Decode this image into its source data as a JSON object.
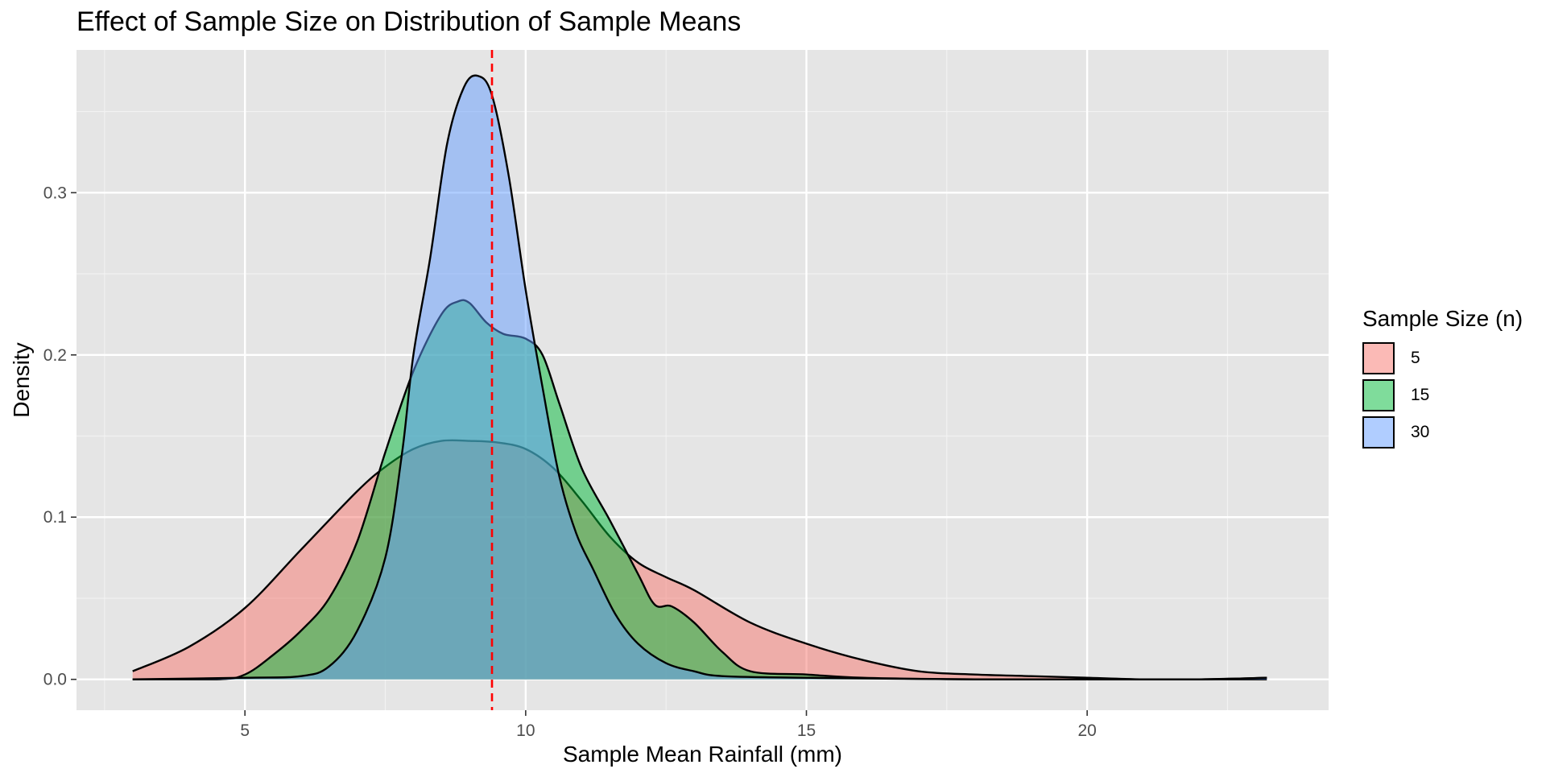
{
  "chart_data": {
    "type": "area",
    "title": "Effect of Sample Size on Distribution of Sample Means",
    "xlabel": "Sample Mean Rainfall (mm)",
    "ylabel": "Density",
    "xlim": [
      2.0,
      24.3
    ],
    "ylim": [
      -0.019,
      0.388
    ],
    "x_ticks": [
      5,
      10,
      15,
      20
    ],
    "x_tick_labels": [
      "5",
      "10",
      "15",
      "20"
    ],
    "y_ticks": [
      0.0,
      0.1,
      0.2,
      0.3
    ],
    "y_tick_labels": [
      "0.0",
      "0.1",
      "0.2",
      "0.3"
    ],
    "grid": true,
    "legend_title": "Sample Size (n)",
    "legend_position": "right",
    "reference_line": {
      "x": 9.4,
      "color": "#ff0000",
      "style": "dashed"
    },
    "series": [
      {
        "name": "5",
        "color": "#F8766D",
        "x": [
          3.0,
          4.0,
          5.0,
          6.0,
          7.0,
          7.5,
          8.0,
          8.5,
          9.0,
          9.5,
          10.0,
          10.5,
          11.0,
          11.5,
          12.0,
          12.5,
          13.0,
          14.0,
          15.0,
          16.0,
          17.0,
          18.0,
          19.0,
          20.0,
          21.0,
          22.0,
          23.2
        ],
        "y": [
          0.005,
          0.02,
          0.044,
          0.08,
          0.116,
          0.131,
          0.142,
          0.147,
          0.147,
          0.146,
          0.142,
          0.13,
          0.11,
          0.088,
          0.072,
          0.063,
          0.055,
          0.035,
          0.022,
          0.012,
          0.005,
          0.003,
          0.002,
          0.001,
          0.0,
          0.0,
          0.001
        ]
      },
      {
        "name": "15",
        "color": "#00BA38",
        "x": [
          3.0,
          4.5,
          5.0,
          5.5,
          6.0,
          6.5,
          7.0,
          7.5,
          8.0,
          8.5,
          8.8,
          9.0,
          9.3,
          9.6,
          10.0,
          10.3,
          10.6,
          11.0,
          11.5,
          12.0,
          12.3,
          12.6,
          13.0,
          13.5,
          14.0,
          15.0,
          16.0,
          18.0,
          20.0,
          22.0,
          23.2
        ],
        "y": [
          0.0,
          0.0,
          0.003,
          0.015,
          0.03,
          0.05,
          0.085,
          0.14,
          0.19,
          0.225,
          0.233,
          0.232,
          0.22,
          0.213,
          0.21,
          0.2,
          0.17,
          0.13,
          0.098,
          0.065,
          0.046,
          0.045,
          0.035,
          0.017,
          0.005,
          0.003,
          0.001,
          0.0,
          0.0,
          0.0,
          0.0
        ]
      },
      {
        "name": "30",
        "color": "#619CFF",
        "x": [
          3.0,
          5.0,
          6.0,
          6.5,
          7.0,
          7.5,
          7.8,
          8.0,
          8.3,
          8.6,
          8.9,
          9.15,
          9.4,
          9.7,
          10.0,
          10.3,
          10.6,
          10.9,
          11.2,
          11.6,
          12.0,
          12.5,
          13.0,
          13.5,
          15.0,
          18.0,
          20.0,
          22.0,
          23.2
        ],
        "y": [
          0.0,
          0.001,
          0.002,
          0.008,
          0.03,
          0.075,
          0.14,
          0.2,
          0.26,
          0.33,
          0.365,
          0.372,
          0.36,
          0.31,
          0.24,
          0.18,
          0.125,
          0.09,
          0.068,
          0.04,
          0.022,
          0.01,
          0.005,
          0.002,
          0.001,
          0.0,
          0.0,
          0.0,
          0.001
        ]
      }
    ]
  }
}
